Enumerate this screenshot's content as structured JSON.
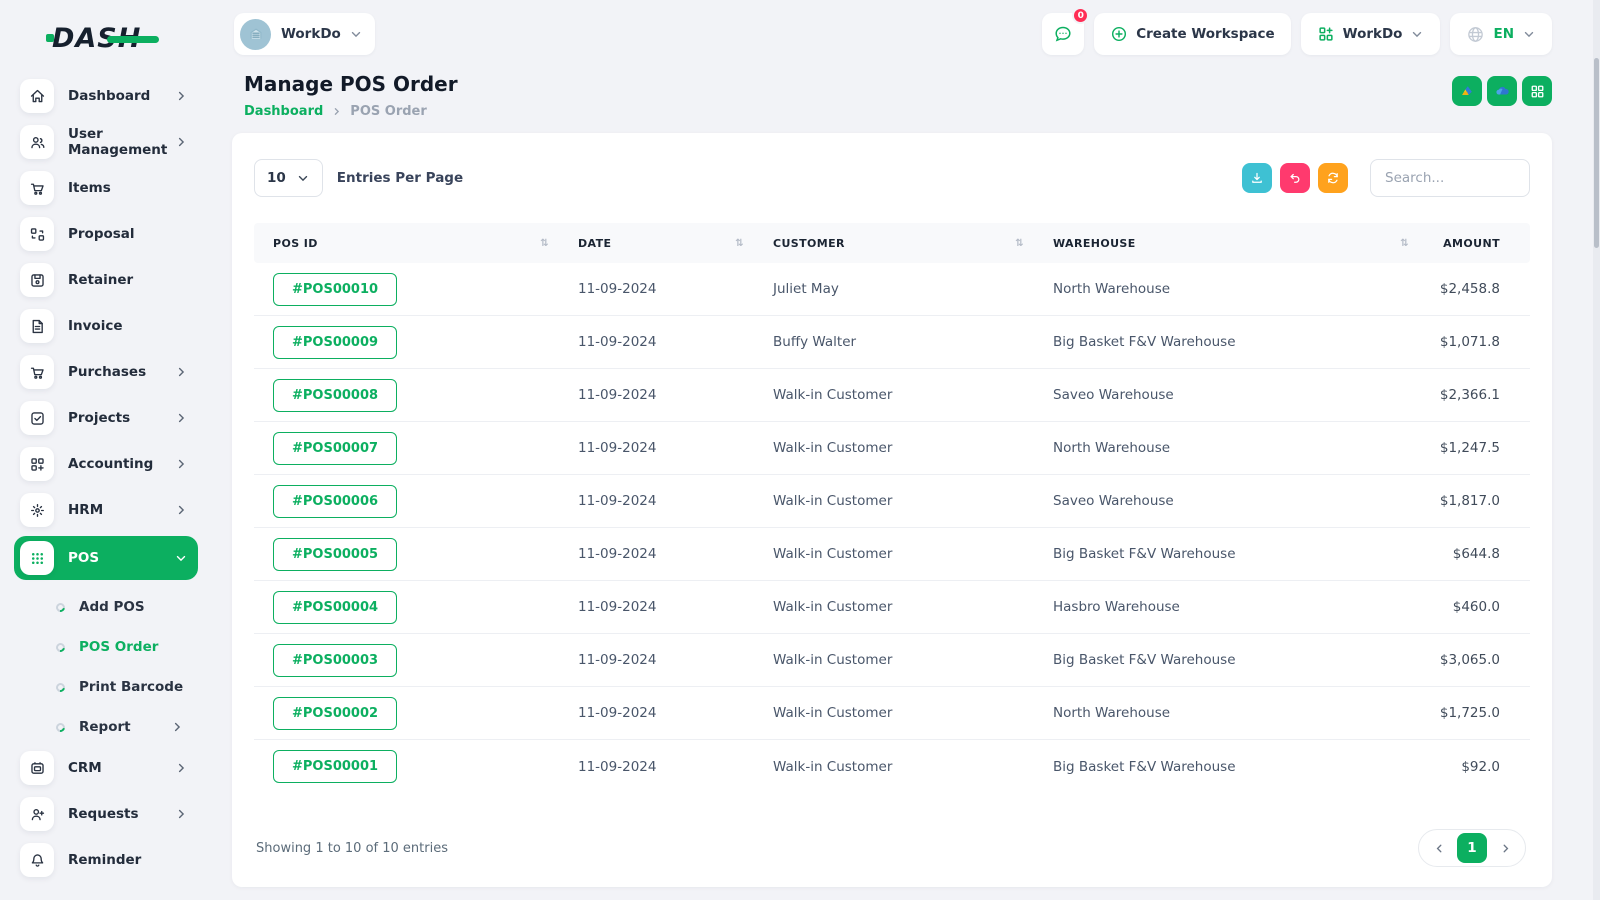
{
  "brand": {
    "logo_text": "DASH"
  },
  "topbar": {
    "workspace_selector_label": "WorkDo",
    "messages_badge": "0",
    "create_workspace_label": "Create Workspace",
    "workdo_dropdown_label": "WorkDo",
    "language": "EN"
  },
  "sidebar": {
    "items": [
      {
        "label": "Dashboard"
      },
      {
        "label": "User Management"
      },
      {
        "label": "Items"
      },
      {
        "label": "Proposal"
      },
      {
        "label": "Retainer"
      },
      {
        "label": "Invoice"
      },
      {
        "label": "Purchases"
      },
      {
        "label": "Projects"
      },
      {
        "label": "Accounting"
      },
      {
        "label": "HRM"
      },
      {
        "label": "POS"
      },
      {
        "label": "CRM"
      },
      {
        "label": "Requests"
      },
      {
        "label": "Reminder"
      }
    ],
    "pos_submenu": [
      {
        "label": "Add POS"
      },
      {
        "label": "POS Order"
      },
      {
        "label": "Print Barcode"
      },
      {
        "label": "Report"
      }
    ]
  },
  "page": {
    "title": "Manage POS Order",
    "breadcrumb_home": "Dashboard",
    "breadcrumb_current": "POS Order"
  },
  "table_controls": {
    "entries_per_page_value": "10",
    "entries_per_page_label": "Entries Per Page",
    "search_placeholder": "Search..."
  },
  "table": {
    "columns": [
      "POS ID",
      "DATE",
      "CUSTOMER",
      "WAREHOUSE",
      "AMOUNT"
    ],
    "rows": [
      {
        "pos_id": "#POS00010",
        "date": "11-09-2024",
        "customer": "Juliet May",
        "warehouse": "North Warehouse",
        "amount": "$2,458.8"
      },
      {
        "pos_id": "#POS00009",
        "date": "11-09-2024",
        "customer": "Buffy Walter",
        "warehouse": "Big Basket F&V Warehouse",
        "amount": "$1,071.8"
      },
      {
        "pos_id": "#POS00008",
        "date": "11-09-2024",
        "customer": "Walk-in Customer",
        "warehouse": "Saveo Warehouse",
        "amount": "$2,366.1"
      },
      {
        "pos_id": "#POS00007",
        "date": "11-09-2024",
        "customer": "Walk-in Customer",
        "warehouse": "North Warehouse",
        "amount": "$1,247.5"
      },
      {
        "pos_id": "#POS00006",
        "date": "11-09-2024",
        "customer": "Walk-in Customer",
        "warehouse": "Saveo Warehouse",
        "amount": "$1,817.0"
      },
      {
        "pos_id": "#POS00005",
        "date": "11-09-2024",
        "customer": "Walk-in Customer",
        "warehouse": "Big Basket F&V Warehouse",
        "amount": "$644.8"
      },
      {
        "pos_id": "#POS00004",
        "date": "11-09-2024",
        "customer": "Walk-in Customer",
        "warehouse": "Hasbro Warehouse",
        "amount": "$460.0"
      },
      {
        "pos_id": "#POS00003",
        "date": "11-09-2024",
        "customer": "Walk-in Customer",
        "warehouse": "Big Basket F&V Warehouse",
        "amount": "$3,065.0"
      },
      {
        "pos_id": "#POS00002",
        "date": "11-09-2024",
        "customer": "Walk-in Customer",
        "warehouse": "North Warehouse",
        "amount": "$1,725.0"
      },
      {
        "pos_id": "#POS00001",
        "date": "11-09-2024",
        "customer": "Walk-in Customer",
        "warehouse": "Big Basket F&V Warehouse",
        "amount": "$92.0"
      }
    ]
  },
  "footer": {
    "showing_text": "Showing 1 to 10 of 10 entries",
    "current_page": "1"
  },
  "colors": {
    "primary_green": "#0CAF60",
    "teal": "#3EC1D3",
    "pink": "#FF3A6E",
    "orange": "#FFA21D",
    "badge_red": "#FF2D55"
  }
}
